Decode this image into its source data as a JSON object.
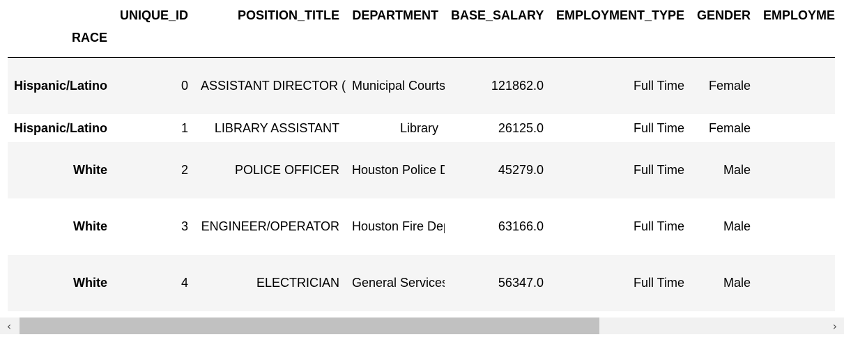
{
  "table": {
    "columns": [
      "UNIQUE_ID",
      "POSITION_TITLE",
      "DEPARTMENT",
      "BASE_SALARY",
      "EMPLOYMENT_TYPE",
      "GENDER",
      "EMPLOYME"
    ],
    "index_name": "RACE",
    "rows": [
      {
        "index": "Hispanic/Latino",
        "cells": [
          "0",
          "ASSISTANT DIRECTOR (EX LVL)",
          "Municipal Courts Department",
          "121862.0",
          "Full Time",
          "Female",
          ""
        ]
      },
      {
        "index": "Hispanic/Latino",
        "cells": [
          "1",
          "LIBRARY ASSISTANT",
          "Library",
          "26125.0",
          "Full Time",
          "Female",
          ""
        ]
      },
      {
        "index": "White",
        "cells": [
          "2",
          "POLICE OFFICER",
          "Houston Police Department-HPD",
          "45279.0",
          "Full Time",
          "Male",
          ""
        ]
      },
      {
        "index": "White",
        "cells": [
          "3",
          "ENGINEER/OPERATOR",
          "Houston Fire Department (HFD)",
          "63166.0",
          "Full Time",
          "Male",
          ""
        ]
      },
      {
        "index": "White",
        "cells": [
          "4",
          "ELECTRICIAN",
          "General Services Department",
          "56347.0",
          "Full Time",
          "Male",
          ""
        ]
      }
    ]
  },
  "scrollbar": {
    "left_arrow": "‹",
    "right_arrow": "›",
    "position_fraction": 0.0,
    "visible_fraction": 0.72
  },
  "colors": {
    "row_stripe": "#f5f5f5",
    "scroll_track": "#f1f1f1",
    "scroll_thumb": "#c1c1c1"
  }
}
